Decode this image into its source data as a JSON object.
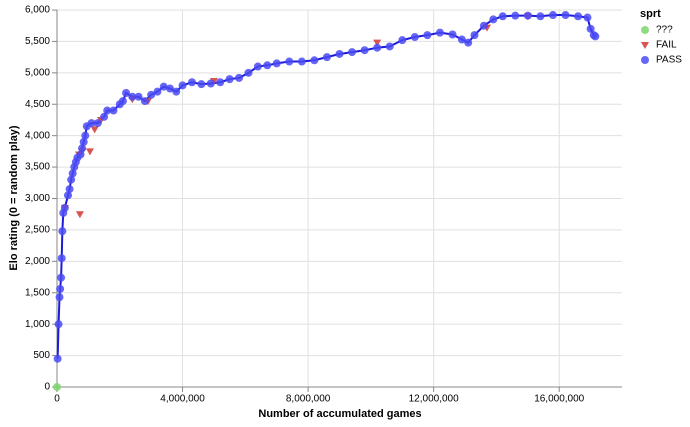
{
  "chart_data": {
    "type": "line",
    "x_title": "Number of accumulated games",
    "y_title": "Elo rating (0 = random play)",
    "legend_title": "sprt",
    "legend": "right",
    "grid": true,
    "line_color": "#1c1cd8",
    "xlim": [
      0,
      18000000
    ],
    "ylim": [
      0,
      6000
    ],
    "xticks": [
      0,
      {
        "value": 4000000,
        "label": "4,000,000"
      },
      {
        "value": 8000000,
        "label": "8,000,000"
      },
      {
        "value": 12000000,
        "label": "12,000,000"
      },
      {
        "value": 16000000,
        "label": "16,000,000"
      }
    ],
    "yticks": [
      0,
      500,
      {
        "value": 1000,
        "label": "1,000"
      },
      {
        "value": 1500,
        "label": "1,500"
      },
      {
        "value": 2000,
        "label": "2,000"
      },
      {
        "value": 2500,
        "label": "2,500"
      },
      {
        "value": 3000,
        "label": "3,000"
      },
      {
        "value": 3500,
        "label": "3,500"
      },
      {
        "value": 4000,
        "label": "4,000"
      },
      {
        "value": 4500,
        "label": "4,500"
      },
      {
        "value": 5000,
        "label": "5,000"
      },
      {
        "value": 5500,
        "label": "5,500"
      },
      {
        "value": 6000,
        "label": "6,000"
      }
    ],
    "series": [
      {
        "name": "???",
        "color": "#7ed66a",
        "marker": "circle",
        "connect": false,
        "x": [
          0
        ],
        "values": [
          0
        ]
      },
      {
        "name": "FAIL",
        "color": "#d9534f",
        "marker": "triangle-down",
        "connect": false,
        "x": [
          250000,
          730000,
          700000,
          800000,
          1050000,
          1200000,
          1400000,
          2400000,
          2900000,
          5000000,
          10200000,
          13700000,
          15000000
        ],
        "values": [
          2850,
          2750,
          3700,
          3750,
          3750,
          4100,
          4250,
          4580,
          4550,
          4870,
          5480,
          5720,
          5900
        ]
      },
      {
        "name": "PASS",
        "color": "#4a4af5",
        "marker": "circle",
        "connect": true,
        "x": [
          20000,
          50000,
          80000,
          100000,
          130000,
          150000,
          170000,
          200000,
          250000,
          350000,
          400000,
          450000,
          500000,
          550000,
          600000,
          650000,
          750000,
          800000,
          850000,
          900000,
          950000,
          1100000,
          1300000,
          1500000,
          1600000,
          1800000,
          2000000,
          2100000,
          2200000,
          2400000,
          2600000,
          2800000,
          3000000,
          3200000,
          3400000,
          3600000,
          3800000,
          4000000,
          4300000,
          4600000,
          4900000,
          5200000,
          5500000,
          5800000,
          6100000,
          6400000,
          6700000,
          7000000,
          7400000,
          7800000,
          8200000,
          8600000,
          9000000,
          9400000,
          9800000,
          10200000,
          10600000,
          11000000,
          11400000,
          11800000,
          12200000,
          12600000,
          12900000,
          13100000,
          13300000,
          13600000,
          13900000,
          14200000,
          14600000,
          15000000,
          15400000,
          15800000,
          16200000,
          16600000,
          16900000,
          17000000,
          17100000,
          17150000
        ],
        "values": [
          450,
          1000,
          1430,
          1560,
          1740,
          2050,
          2480,
          2770,
          2850,
          3050,
          3150,
          3300,
          3400,
          3500,
          3580,
          3650,
          3700,
          3800,
          3900,
          4000,
          4150,
          4200,
          4200,
          4300,
          4400,
          4400,
          4500,
          4550,
          4680,
          4620,
          4620,
          4550,
          4650,
          4700,
          4780,
          4750,
          4700,
          4800,
          4850,
          4820,
          4830,
          4850,
          4900,
          4920,
          5000,
          5100,
          5120,
          5150,
          5180,
          5180,
          5200,
          5250,
          5300,
          5330,
          5360,
          5400,
          5420,
          5520,
          5570,
          5600,
          5640,
          5610,
          5530,
          5480,
          5600,
          5750,
          5850,
          5900,
          5910,
          5910,
          5900,
          5920,
          5920,
          5900,
          5880,
          5700,
          5600,
          5580
        ]
      }
    ]
  }
}
